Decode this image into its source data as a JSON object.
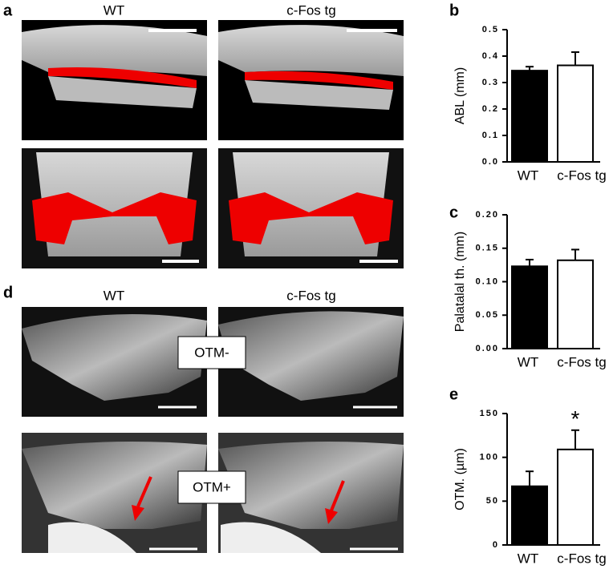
{
  "figure": {
    "panel_labels": [
      "a",
      "b",
      "c",
      "d",
      "e"
    ],
    "a_columns": [
      "WT",
      "c-Fos tg"
    ],
    "d_columns": [
      "WT",
      "c-Fos tg"
    ],
    "d_rows": [
      "OTM-",
      "OTM+"
    ]
  },
  "chart_data": [
    {
      "type": "bar",
      "ylabel": "ABL (mm)",
      "categories": [
        "WT",
        "c-Fos tg"
      ],
      "values": [
        0.345,
        0.365
      ],
      "errors": [
        0.015,
        0.05
      ],
      "colors": [
        "#000000",
        "#ffffff"
      ],
      "ylim": [
        0,
        0.5
      ],
      "yticks": [
        {
          "value": 0,
          "label": "0.0"
        },
        0.1,
        0.2,
        0.3,
        0.4,
        0.5
      ]
    },
    {
      "type": "bar",
      "ylabel": "Palatalal th. (mm)",
      "categories": [
        "WT",
        "c-Fos tg"
      ],
      "values": [
        0.123,
        0.132
      ],
      "errors": [
        0.01,
        0.016
      ],
      "colors": [
        "#000000",
        "#ffffff"
      ],
      "ylim": [
        0,
        0.2
      ],
      "yticks": [
        {
          "value": 0,
          "label": "0.00"
        },
        0.05,
        {
          "value": 0.1,
          "label": "0.10"
        },
        0.15,
        {
          "value": 0.2,
          "label": "0.20"
        }
      ]
    },
    {
      "type": "bar",
      "ylabel": "OTM. (µm)",
      "categories": [
        "WT",
        "c-Fos tg"
      ],
      "values": [
        67,
        109
      ],
      "errors": [
        17,
        22
      ],
      "colors": [
        "#000000",
        "#ffffff"
      ],
      "ylim": [
        0,
        150
      ],
      "yticks": [
        0,
        50,
        100,
        150
      ],
      "annotation": "*"
    }
  ]
}
